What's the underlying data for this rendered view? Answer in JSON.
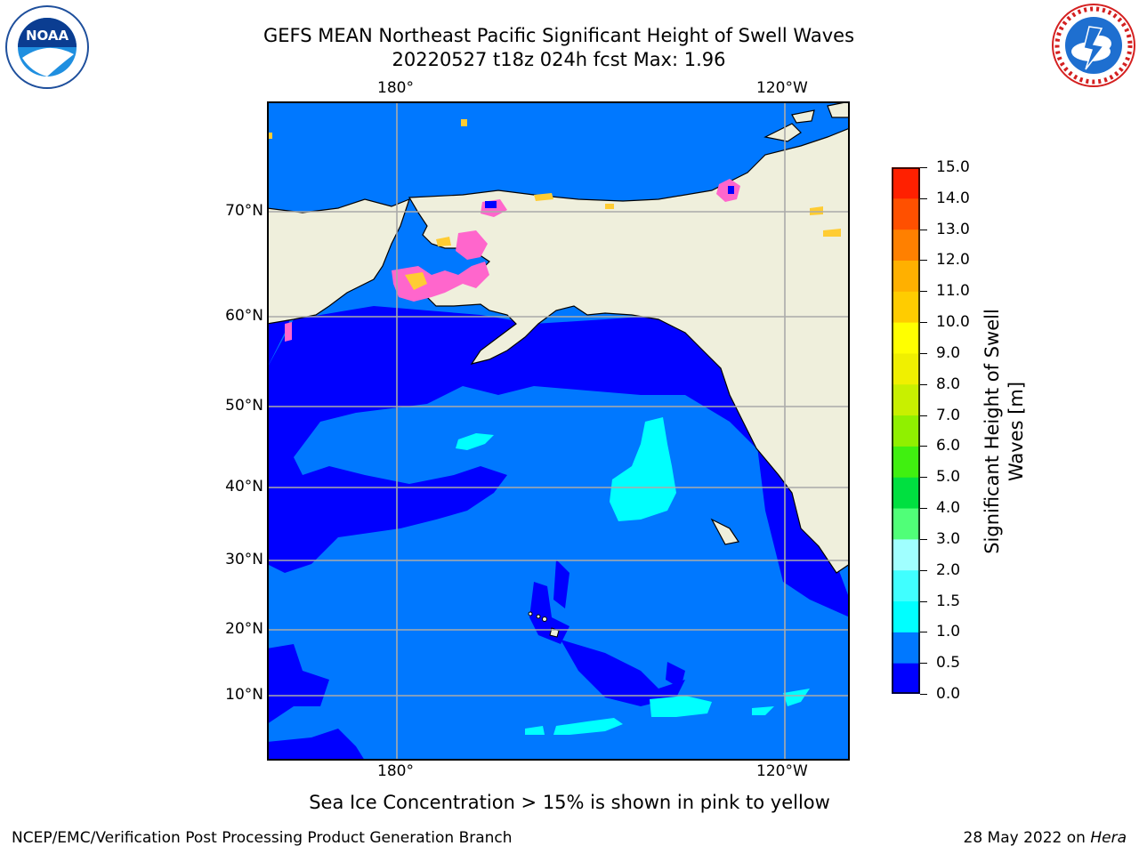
{
  "title_line1": "GEFS MEAN Northeast Pacific Significant Height of Swell Waves",
  "title_line2": "20220527 t18z 024h fcst   Max: 1.96",
  "lon_labels": [
    "180°",
    "120°W"
  ],
  "lat_labels": [
    "70°N",
    "60°N",
    "50°N",
    "40°N",
    "30°N",
    "20°N",
    "10°N"
  ],
  "colorbar": {
    "label_line1": "Significant Height of Swell",
    "label_line2": "Waves [m]",
    "ticks": [
      "15.0",
      "14.0",
      "13.0",
      "12.0",
      "11.0",
      "10.0",
      "9.0",
      "8.0",
      "7.0",
      "6.0",
      "5.0",
      "4.0",
      "3.0",
      "2.0",
      "1.5",
      "1.0",
      "0.5",
      "0.0"
    ],
    "bin_colors_bottom_to_top": [
      "#0000ff",
      "#0078ff",
      "#00ffff",
      "#40ffff",
      "#a0ffff",
      "#50ff78",
      "#00e040",
      "#40f010",
      "#90f000",
      "#c8f000",
      "#f0f000",
      "#ffff00",
      "#ffcc00",
      "#ffb000",
      "#ff8000",
      "#ff5000",
      "#ff2000",
      "#ff0000"
    ]
  },
  "colors": {
    "ocean_dark": "#0000ff",
    "ocean_mid": "#0078ff",
    "ocean_light": "#00ffff",
    "land": "#efefdc",
    "ice_pink": "#ff66cc",
    "ice_yellow": "#ffcc33"
  },
  "note": "Sea Ice Concentration > 15% is shown in pink to yellow",
  "footer_left": "NCEP/EMC/Verification Post Processing Product Generation Branch",
  "footer_date": "28 May 2022 on",
  "footer_host": "Hera",
  "logo_left_text": "NOAA",
  "logo_right_text": "NATIONAL WEATHER SERVICE"
}
